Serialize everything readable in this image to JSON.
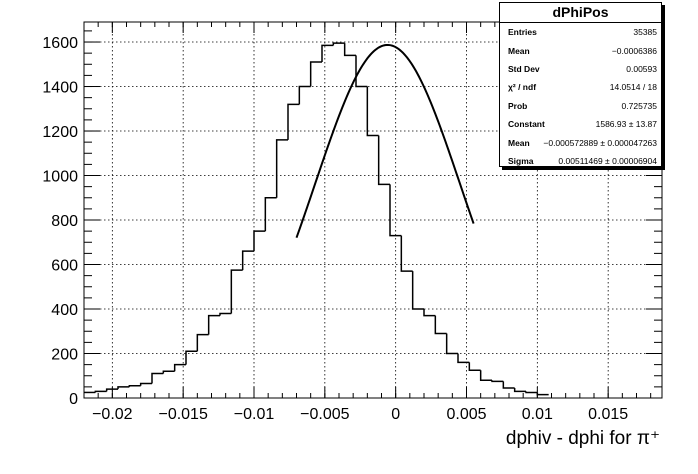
{
  "chart_data": {
    "type": "histogram",
    "title": "dPhiPos",
    "xlabel": "dphiv - dphi for π⁺",
    "ylabel": "",
    "xlim": [
      -0.022,
      0.0188
    ],
    "ylim": [
      0,
      1690
    ],
    "grid": true,
    "bin_edges_start": -0.022,
    "bin_width": 0.0008,
    "bin_counts": [
      25,
      30,
      40,
      50,
      55,
      65,
      110,
      120,
      150,
      210,
      285,
      370,
      380,
      575,
      660,
      750,
      900,
      1160,
      1320,
      1400,
      1510,
      1585,
      1595,
      1540,
      1400,
      1180,
      960,
      730,
      570,
      400,
      370,
      290,
      200,
      160,
      125,
      80,
      75,
      45,
      30,
      25,
      15
    ],
    "fit": {
      "type": "gaussian",
      "range": [
        -0.007,
        0.0055
      ],
      "constant": 1586.93,
      "mean": -0.000572889,
      "sigma": 0.00511469
    },
    "x_ticks": [
      -0.02,
      -0.015,
      -0.01,
      -0.005,
      0,
      0.005,
      0.01,
      0.015
    ],
    "x_tick_labels": [
      "−0.02",
      "−0.015",
      "−0.01",
      "−0.005",
      "0",
      "0.005",
      "0.01",
      "0.015"
    ],
    "y_ticks": [
      0,
      200,
      400,
      600,
      800,
      1000,
      1200,
      1400,
      1600
    ],
    "y_tick_labels": [
      "0",
      "200",
      "400",
      "600",
      "800",
      "1000",
      "1200",
      "1400",
      "1600"
    ],
    "stats": [
      {
        "key": "Entries",
        "value": "35385"
      },
      {
        "key": "Mean",
        "value": "−0.0006386"
      },
      {
        "key": "Std Dev",
        "value": "0.00593"
      },
      {
        "key": "χ² / ndf",
        "value": "14.0514 / 18"
      },
      {
        "key": "Prob",
        "value": "0.725735"
      },
      {
        "key": "Constant",
        "value": "1586.93 ± 13.87"
      },
      {
        "key": "Mean",
        "value": "−0.000572889 ± 0.000047263"
      },
      {
        "key": "Sigma",
        "value": "0.00511469 ± 0.00006904"
      }
    ]
  }
}
